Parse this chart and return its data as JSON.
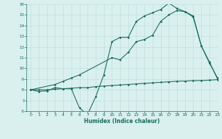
{
  "line1_x": [
    0,
    1,
    2,
    3,
    4,
    5,
    6,
    7,
    8,
    9,
    10,
    11,
    12,
    13,
    14,
    15,
    16,
    17,
    18,
    19,
    20,
    21,
    22,
    23
  ],
  "line1_y": [
    8.0,
    7.85,
    7.9,
    8.2,
    8.1,
    8.1,
    6.3,
    5.7,
    7.35,
    9.4,
    12.5,
    12.9,
    12.9,
    14.4,
    14.9,
    15.2,
    15.5,
    16.1,
    15.6,
    15.3,
    14.9,
    12.1,
    10.6,
    9.0
  ],
  "line2_x": [
    0,
    3,
    4,
    5,
    6,
    10,
    11,
    12,
    13,
    14,
    15,
    16,
    17,
    18,
    19,
    20,
    21,
    22,
    23
  ],
  "line2_y": [
    8.0,
    8.5,
    8.8,
    9.1,
    9.4,
    11.0,
    10.8,
    11.5,
    12.5,
    12.7,
    13.1,
    14.4,
    15.0,
    15.4,
    15.3,
    14.8,
    12.1,
    10.5,
    9.1
  ],
  "line3_x": [
    0,
    1,
    2,
    3,
    4,
    5,
    6,
    7,
    8,
    9,
    10,
    11,
    12,
    13,
    14,
    15,
    16,
    17,
    18,
    19,
    20,
    21,
    22,
    23
  ],
  "line3_y": [
    8.0,
    8.0,
    8.0,
    8.05,
    8.1,
    8.15,
    8.2,
    8.2,
    8.3,
    8.35,
    8.4,
    8.45,
    8.5,
    8.55,
    8.6,
    8.65,
    8.7,
    8.75,
    8.8,
    8.82,
    8.85,
    8.87,
    8.9,
    8.95
  ],
  "line_color": "#1a6b5a",
  "bg_color": "#d9f0ee",
  "grid_color": "#b8dbd8",
  "xlabel": "Humidex (Indice chaleur)",
  "ylim": [
    6,
    16
  ],
  "xlim": [
    -0.5,
    23
  ],
  "yticks": [
    6,
    7,
    8,
    9,
    10,
    11,
    12,
    13,
    14,
    15,
    16
  ],
  "xticks": [
    0,
    1,
    2,
    3,
    4,
    5,
    6,
    7,
    8,
    9,
    10,
    11,
    12,
    13,
    14,
    15,
    16,
    17,
    18,
    19,
    20,
    21,
    22,
    23
  ],
  "marker": "D",
  "marker_size": 1.8,
  "line_width": 0.8
}
